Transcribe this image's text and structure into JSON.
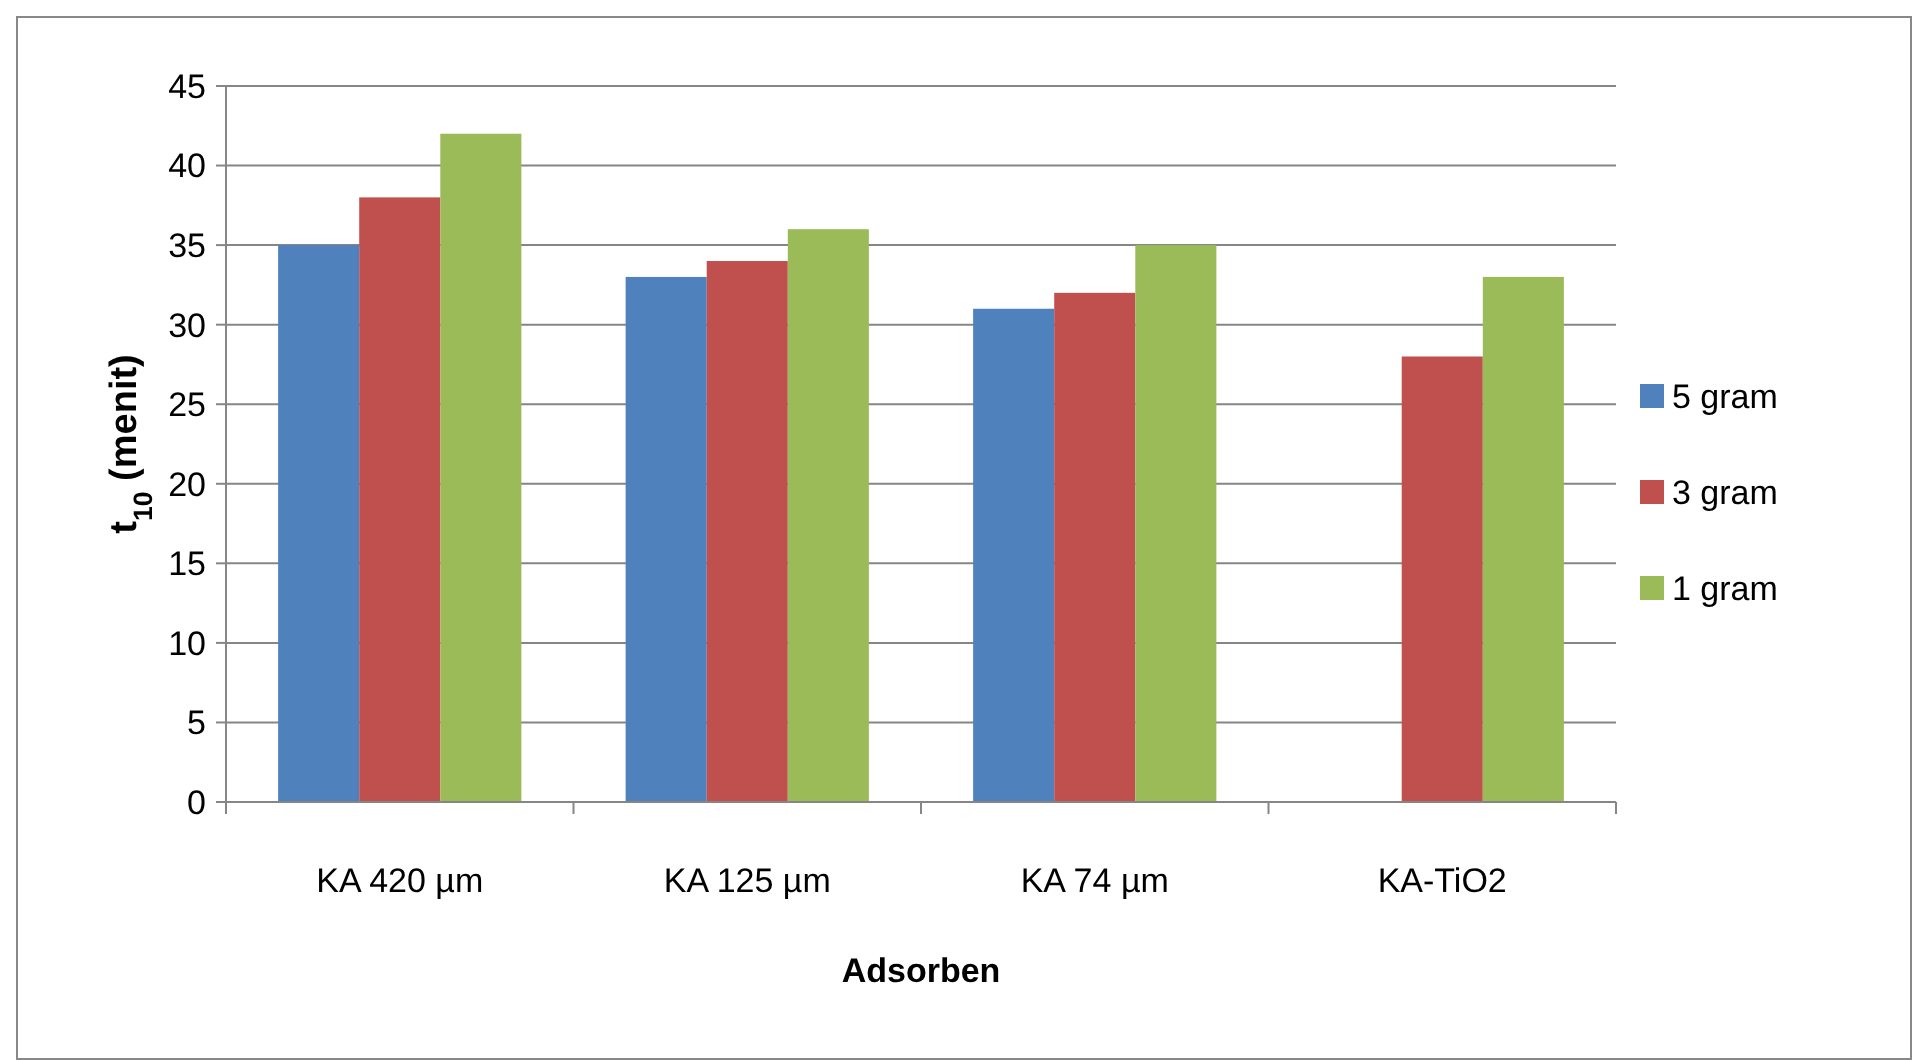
{
  "chart_data": {
    "type": "bar",
    "xlabel": "Adsorben",
    "ylabel": "t$_{10}$ (menit)",
    "categories": [
      "KA 420 µm",
      "KA 125 µm",
      "KA 74 µm",
      "KA-TiO2"
    ],
    "series": [
      {
        "name": "5 gram",
        "color": "#4f81bd",
        "values": [
          35,
          33,
          31,
          null
        ]
      },
      {
        "name": "3 gram",
        "color": "#c0504d",
        "values": [
          38,
          34,
          32,
          28
        ]
      },
      {
        "name": "1 gram",
        "color": "#9bbb59",
        "values": [
          42,
          36,
          35,
          33
        ]
      }
    ],
    "ylim": [
      0,
      45
    ],
    "yticks": [
      0,
      5,
      10,
      15,
      20,
      25,
      30,
      35,
      40,
      45
    ],
    "grid": "y",
    "legend": "right"
  }
}
